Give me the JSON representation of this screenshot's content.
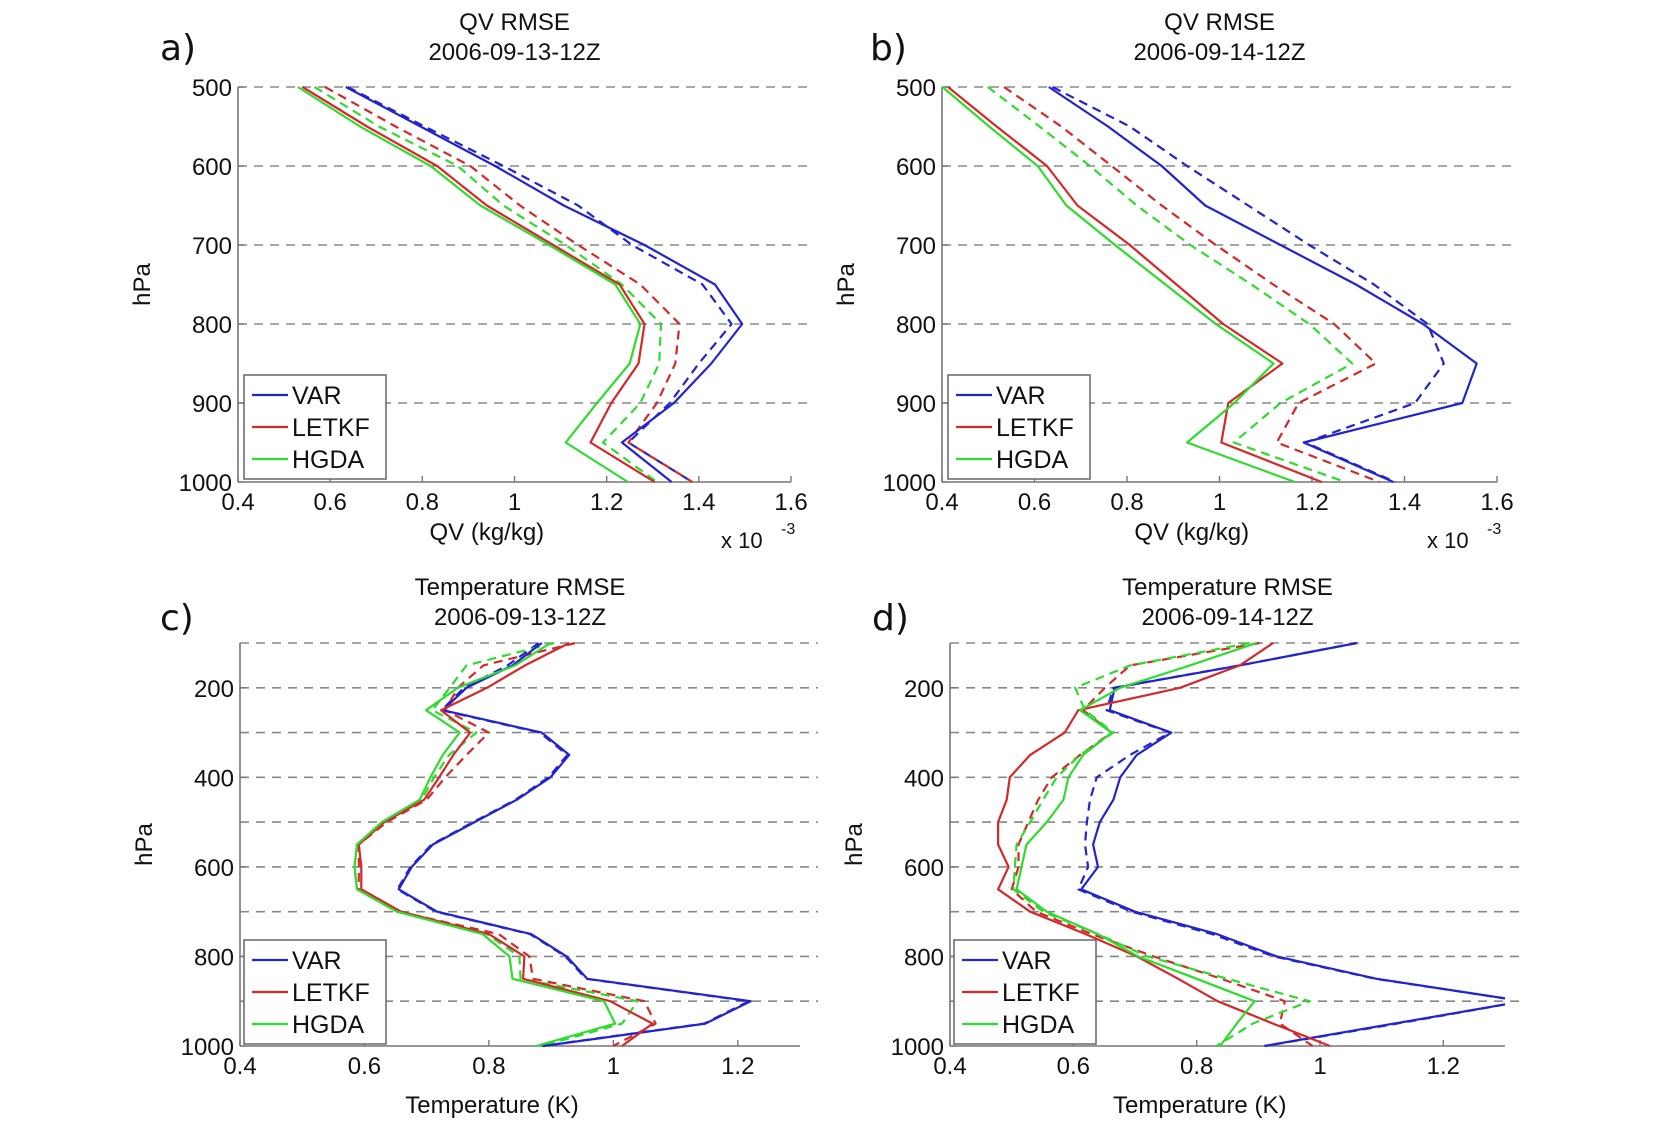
{
  "chart_data": [
    {
      "panel": "a)",
      "type": "line",
      "title": "QV RMSE",
      "subtitle": "2006-09-13-12Z",
      "xlabel": "QV (kg/kg)",
      "x_multiplier_label": "x 10",
      "x_multiplier_exponent": "-3",
      "ylabel": "hPa",
      "xlim": [
        0.4,
        1.6
      ],
      "ylim": [
        500,
        1000
      ],
      "y_reversed": true,
      "xticks": [
        "0.4",
        "0.6",
        "0.8",
        "1",
        "1.2",
        "1.4",
        "1.6"
      ],
      "yticks": [
        "500",
        "600",
        "700",
        "800",
        "900",
        "1000"
      ],
      "ygrid": [
        500,
        600,
        700,
        800,
        900
      ],
      "legend": {
        "placement": "bottom-left",
        "entries": [
          "VAR",
          "LETKF",
          "HGDA"
        ]
      },
      "pressure": [
        500,
        550,
        600,
        650,
        700,
        750,
        800,
        850,
        900,
        950,
        1000
      ],
      "series": [
        {
          "name": "VAR",
          "style": "solid",
          "color": "#2323d0",
          "values": [
            0.634,
            0.796,
            0.958,
            1.107,
            1.282,
            1.435,
            1.494,
            1.427,
            1.346,
            1.233,
            1.341
          ]
        },
        {
          "name": "VAR",
          "style": "dashed",
          "color": "#2323d0",
          "values": [
            0.638,
            0.805,
            0.976,
            1.138,
            1.255,
            1.408,
            1.471,
            1.4,
            1.337,
            1.247,
            1.386
          ]
        },
        {
          "name": "LETKF",
          "style": "solid",
          "color": "#d62828",
          "values": [
            0.54,
            0.68,
            0.832,
            0.94,
            1.084,
            1.228,
            1.282,
            1.269,
            1.21,
            1.165,
            1.304
          ]
        },
        {
          "name": "LETKF",
          "style": "dashed",
          "color": "#d62828",
          "values": [
            0.589,
            0.742,
            0.904,
            1.012,
            1.138,
            1.273,
            1.358,
            1.349,
            1.309,
            1.247,
            1.386
          ]
        },
        {
          "name": "HGDA",
          "style": "solid",
          "color": "#2edc2e",
          "values": [
            0.53,
            0.665,
            0.818,
            0.926,
            1.075,
            1.219,
            1.273,
            1.25,
            1.179,
            1.111,
            1.246
          ]
        },
        {
          "name": "HGDA",
          "style": "dashed",
          "color": "#2edc2e",
          "values": [
            0.566,
            0.706,
            0.877,
            0.976,
            1.111,
            1.233,
            1.318,
            1.314,
            1.273,
            1.192,
            1.309
          ]
        }
      ]
    },
    {
      "panel": "b)",
      "type": "line",
      "title": "QV RMSE",
      "subtitle": "2006-09-14-12Z",
      "xlabel": "QV (kg/kg)",
      "x_multiplier_label": "x 10",
      "x_multiplier_exponent": "-3",
      "ylabel": "hPa",
      "xlim": [
        0.4,
        1.6
      ],
      "ylim": [
        500,
        1000
      ],
      "y_reversed": true,
      "xticks": [
        "0.4",
        "0.6",
        "0.8",
        "1",
        "1.2",
        "1.4",
        "1.6"
      ],
      "yticks": [
        "500",
        "600",
        "700",
        "800",
        "900",
        "1000"
      ],
      "ygrid": [
        500,
        600,
        700,
        800,
        900
      ],
      "legend": {
        "placement": "bottom-left",
        "entries": [
          "VAR",
          "LETKF",
          "HGDA"
        ]
      },
      "pressure": [
        500,
        550,
        600,
        650,
        700,
        750,
        800,
        850,
        900,
        950,
        1000
      ],
      "series": [
        {
          "name": "VAR",
          "style": "solid",
          "color": "#2323d0",
          "values": [
            0.631,
            0.759,
            0.875,
            0.969,
            1.132,
            1.295,
            1.44,
            1.556,
            1.525,
            1.182,
            1.376
          ]
        },
        {
          "name": "VAR",
          "style": "dashed",
          "color": "#2323d0",
          "values": [
            0.639,
            0.806,
            0.93,
            1.062,
            1.194,
            1.334,
            1.45,
            1.485,
            1.423,
            1.186,
            1.38
          ]
        },
        {
          "name": "LETKF",
          "style": "solid",
          "color": "#d62828",
          "values": [
            0.413,
            0.518,
            0.627,
            0.693,
            0.806,
            0.907,
            1.008,
            1.136,
            1.019,
            1.004,
            1.221
          ]
        },
        {
          "name": "LETKF",
          "style": "dashed",
          "color": "#d62828",
          "values": [
            0.534,
            0.658,
            0.767,
            0.875,
            0.992,
            1.116,
            1.248,
            1.338,
            1.171,
            1.124,
            1.346
          ]
        },
        {
          "name": "HGDA",
          "style": "solid",
          "color": "#2edc2e",
          "values": [
            0.401,
            0.502,
            0.607,
            0.669,
            0.774,
            0.883,
            0.992,
            1.117,
            1.032,
            0.93,
            1.163
          ]
        },
        {
          "name": "HGDA",
          "style": "dashed",
          "color": "#2edc2e",
          "values": [
            0.499,
            0.611,
            0.72,
            0.821,
            0.937,
            1.069,
            1.194,
            1.287,
            1.132,
            1.031,
            1.272
          ]
        }
      ]
    },
    {
      "panel": "c)",
      "type": "line",
      "title": "Temperature RMSE",
      "subtitle": "2006-09-13-12Z",
      "xlabel": "Temperature (K)",
      "ylabel": "hPa",
      "xlim": [
        0.4,
        1.3
      ],
      "ylim": [
        100,
        1000
      ],
      "y_reversed": true,
      "xticks": [
        "0.4",
        "0.6",
        "0.8",
        "1",
        "1.2"
      ],
      "yticks": [
        "200",
        "400",
        "600",
        "800",
        "1000"
      ],
      "ygrid": [
        100,
        200,
        300,
        400,
        500,
        600,
        700,
        800,
        900
      ],
      "legend": {
        "placement": "bottom-left",
        "entries": [
          "VAR",
          "LETKF",
          "HGDA"
        ]
      },
      "pressure": [
        100,
        150,
        200,
        250,
        300,
        350,
        400,
        450,
        500,
        550,
        600,
        650,
        700,
        750,
        800,
        850,
        900,
        950,
        1000
      ],
      "series": [
        {
          "name": "VAR",
          "style": "solid",
          "color": "#2323d0",
          "values": [
            0.885,
            0.838,
            0.764,
            0.726,
            0.885,
            0.929,
            0.899,
            0.845,
            0.777,
            0.71,
            0.676,
            0.655,
            0.717,
            0.868,
            0.925,
            0.958,
            1.221,
            1.148,
            0.888
          ]
        },
        {
          "name": "VAR",
          "style": "dashed",
          "color": "#2323d0",
          "values": [
            0.88,
            0.83,
            0.76,
            0.724,
            0.882,
            0.926,
            0.896,
            0.843,
            0.775,
            0.708,
            0.674,
            0.653,
            0.715,
            0.866,
            0.923,
            0.956,
            1.218,
            1.146,
            0.886
          ]
        },
        {
          "name": "LETKF",
          "style": "solid",
          "color": "#d62828",
          "values": [
            0.929,
            0.858,
            0.797,
            0.723,
            0.77,
            0.743,
            0.72,
            0.696,
            0.632,
            0.591,
            0.595,
            0.595,
            0.659,
            0.8,
            0.857,
            0.855,
            0.995,
            1.063,
            1.014
          ]
        },
        {
          "name": "LETKF",
          "style": "dashed",
          "color": "#d62828",
          "values": [
            0.939,
            0.791,
            0.75,
            0.73,
            0.8,
            0.764,
            0.73,
            0.7,
            0.636,
            0.591,
            0.591,
            0.591,
            0.655,
            0.816,
            0.865,
            0.871,
            1.05,
            1.068,
            1.0
          ]
        },
        {
          "name": "HGDA",
          "style": "solid",
          "color": "#2edc2e",
          "values": [
            0.899,
            0.842,
            0.75,
            0.699,
            0.753,
            0.726,
            0.706,
            0.689,
            0.628,
            0.588,
            0.584,
            0.588,
            0.652,
            0.79,
            0.833,
            0.838,
            0.985,
            1.003,
            0.876
          ]
        },
        {
          "name": "HGDA",
          "style": "dashed",
          "color": "#2edc2e",
          "values": [
            0.905,
            0.764,
            0.737,
            0.709,
            0.78,
            0.736,
            0.712,
            0.692,
            0.63,
            0.588,
            0.584,
            0.588,
            0.655,
            0.797,
            0.849,
            0.851,
            1.039,
            1.014,
            0.885
          ]
        }
      ]
    },
    {
      "panel": "d)",
      "type": "line",
      "title": "Temperature RMSE",
      "subtitle": "2006-09-14-12Z",
      "xlabel": "Temperature (K)",
      "ylabel": "hPa",
      "xlim": [
        0.4,
        1.3
      ],
      "ylim": [
        100,
        1000
      ],
      "y_reversed": true,
      "xticks": [
        "0.4",
        "0.6",
        "0.8",
        "1",
        "1.2"
      ],
      "yticks": [
        "200",
        "400",
        "600",
        "800",
        "1000"
      ],
      "ygrid": [
        100,
        200,
        300,
        400,
        500,
        600,
        700,
        800,
        900
      ],
      "legend": {
        "placement": "bottom-left",
        "entries": [
          "VAR",
          "LETKF",
          "HGDA"
        ]
      },
      "pressure": [
        100,
        150,
        200,
        250,
        300,
        350,
        400,
        450,
        500,
        550,
        600,
        650,
        700,
        750,
        800,
        850,
        900,
        950,
        1000
      ],
      "series": [
        {
          "name": "VAR",
          "style": "solid",
          "color": "#2323d0",
          "values": [
            1.06,
            0.87,
            0.667,
            0.659,
            0.759,
            0.703,
            0.676,
            0.665,
            0.643,
            0.632,
            0.64,
            0.613,
            0.7,
            0.833,
            0.93,
            1.092,
            1.33,
            1.12,
            0.91
          ]
        },
        {
          "name": "VAR",
          "style": "dashed",
          "color": "#2323d0",
          "values": [
            1.06,
            0.87,
            0.665,
            0.654,
            0.757,
            0.692,
            0.638,
            0.627,
            0.622,
            0.619,
            0.624,
            0.608,
            0.695,
            0.825,
            0.925,
            1.09,
            1.33,
            1.125,
            0.91
          ]
        },
        {
          "name": "LETKF",
          "style": "solid",
          "color": "#d62828",
          "values": [
            0.924,
            0.87,
            0.773,
            0.608,
            0.586,
            0.53,
            0.497,
            0.492,
            0.478,
            0.478,
            0.495,
            0.478,
            0.53,
            0.62,
            0.703,
            0.77,
            0.834,
            0.924,
            1.016
          ]
        },
        {
          "name": "LETKF",
          "style": "dashed",
          "color": "#d62828",
          "values": [
            0.902,
            0.692,
            0.651,
            0.616,
            0.662,
            0.611,
            0.565,
            0.543,
            0.527,
            0.511,
            0.511,
            0.5,
            0.54,
            0.63,
            0.73,
            0.84,
            0.943,
            0.935,
            0.988
          ]
        },
        {
          "name": "HGDA",
          "style": "solid",
          "color": "#2edc2e",
          "values": [
            0.897,
            0.789,
            0.676,
            0.611,
            0.662,
            0.616,
            0.592,
            0.584,
            0.557,
            0.524,
            0.516,
            0.508,
            0.557,
            0.64,
            0.705,
            0.8,
            0.894,
            0.865,
            0.838
          ]
        },
        {
          "name": "HGDA",
          "style": "dashed",
          "color": "#2edc2e",
          "values": [
            0.886,
            0.692,
            0.603,
            0.619,
            0.665,
            0.611,
            0.573,
            0.551,
            0.53,
            0.508,
            0.505,
            0.503,
            0.551,
            0.64,
            0.72,
            0.85,
            0.983,
            0.891,
            0.832
          ]
        }
      ]
    }
  ]
}
